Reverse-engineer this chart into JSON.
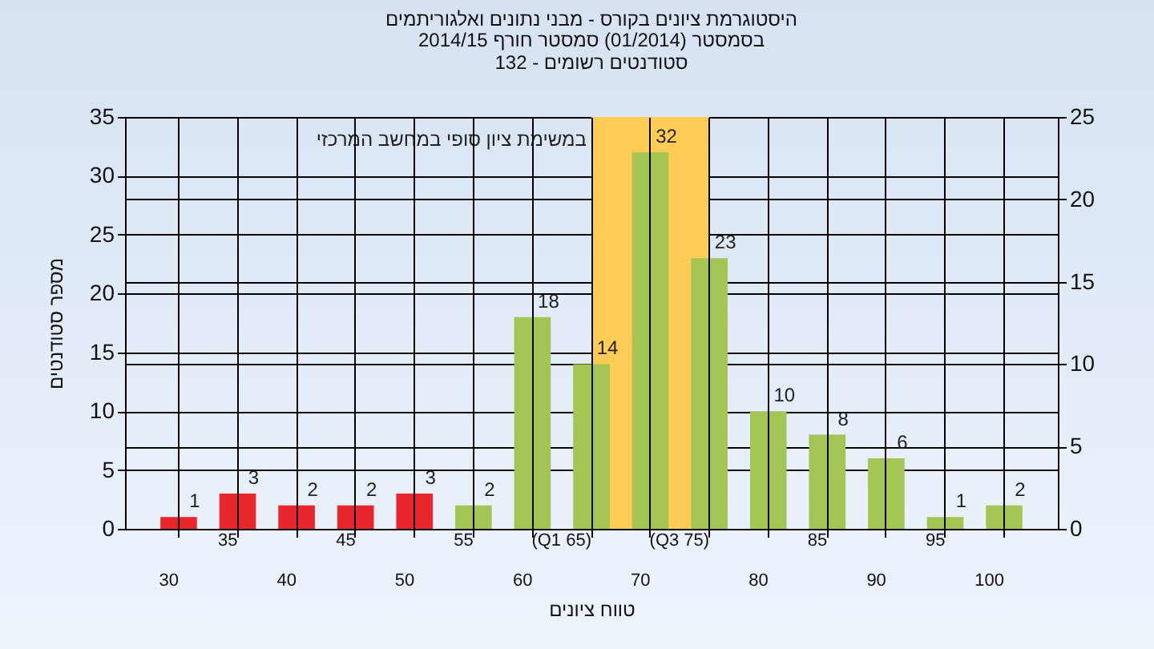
{
  "chart_data": {
    "type": "bar",
    "title": "היסטוגרמת ציונים בקורס - מבני נתונים ואלגוריתמים",
    "subtitle": "בסמסטר  (01/2014)  סמסטר חורף 2014/15\nסטודנטים רשומים - 132",
    "xlabel": "טווח ציונים",
    "ylabel": "מספר סטודנטים",
    "categories": [
      "30",
      "35",
      "40",
      "45",
      "50",
      "55",
      "60",
      "(Q1 65)",
      "70",
      "(Q3 75)",
      "80",
      "85",
      "90",
      "95",
      "100"
    ],
    "values": [
      1,
      3,
      2,
      2,
      3,
      2,
      18,
      14,
      32,
      23,
      10,
      8,
      6,
      1,
      2
    ],
    "colors": [
      "#e8262c",
      "#e8262c",
      "#e8262c",
      "#e8262c",
      "#e8262c",
      "#a4c454",
      "#a4c454",
      "#a4c454",
      "#a4c454",
      "#a4c454",
      "#a4c454",
      "#a4c454",
      "#a4c454",
      "#a4c454",
      "#a4c454"
    ],
    "ylim": [
      0,
      35
    ],
    "yticks": [
      0,
      5,
      10,
      15,
      20,
      25,
      30,
      35
    ],
    "y2lim": [
      0,
      25
    ],
    "y2ticks": [
      0,
      5,
      10,
      15,
      20,
      25
    ],
    "bands": [
      {
        "axis": "x",
        "from": "(Q1 65)",
        "to": "(Q3 75)",
        "color": "#ffcc55"
      }
    ],
    "annotations": [
      "במשימת ציון סופי במחשב המרכזי"
    ],
    "data_labels": true,
    "grid": true
  }
}
